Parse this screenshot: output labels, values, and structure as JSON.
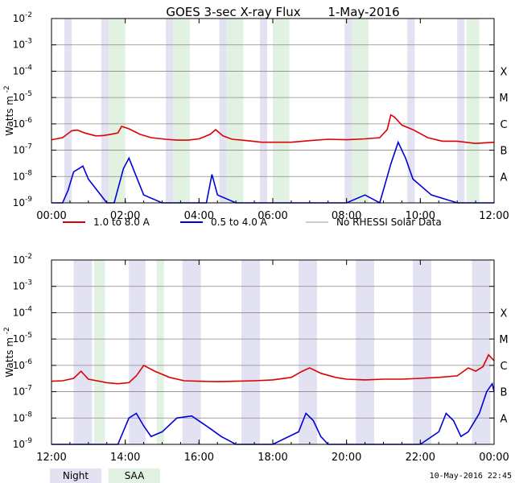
{
  "title": "GOES 3-sec X-ray Flux",
  "date": "1-May-2016",
  "timestamp": "10-May-2016 22:45",
  "colors": {
    "low": "#dd0000",
    "high": "#0000dd",
    "norhessi": "#999999",
    "night": "#e2e2f2",
    "saa": "#e2f2e2",
    "grid": "#888888"
  },
  "legend": [
    {
      "label": "1.0 to 8.0 A",
      "color": "#dd0000"
    },
    {
      "label": "0.5 to 4.0 A",
      "color": "#0000dd"
    },
    {
      "label": "No RHESSI Solar Data",
      "color": "#999999"
    }
  ],
  "key": {
    "night": "Night",
    "saa": "SAA"
  },
  "chart_data": [
    {
      "type": "line",
      "ylabel": "Watts m",
      "ylabel_sup": "-2",
      "ylog": true,
      "ylim": [
        1e-09,
        0.01
      ],
      "xlim_hours": [
        0,
        12
      ],
      "xticks": [
        "00:00",
        "02:00",
        "04:00",
        "06:00",
        "08:00",
        "10:00",
        "12:00"
      ],
      "yticks": [
        "10-9",
        "10-8",
        "10-7",
        "10-6",
        "10-5",
        "10-4",
        "10-3",
        "10-2"
      ],
      "class_labels": [
        "A",
        "B",
        "C",
        "M",
        "X"
      ],
      "night": [
        [
          0.35,
          0.55
        ],
        [
          1.35,
          1.55
        ],
        [
          3.1,
          3.3
        ],
        [
          4.55,
          4.75
        ],
        [
          5.65,
          5.85
        ],
        [
          7.95,
          8.15
        ],
        [
          9.65,
          9.85
        ],
        [
          11.0,
          11.2
        ]
      ],
      "saa": [
        [
          1.55,
          2.0
        ],
        [
          3.3,
          3.75
        ],
        [
          4.75,
          5.2
        ],
        [
          6.0,
          6.45
        ],
        [
          8.15,
          8.6
        ],
        [
          11.25,
          11.6
        ]
      ],
      "series": [
        {
          "name": "1.0 to 8.0 A",
          "x": [
            0.0,
            0.3,
            0.55,
            0.7,
            0.9,
            1.2,
            1.4,
            1.6,
            1.8,
            1.9,
            2.1,
            2.4,
            2.7,
            3.1,
            3.4,
            3.7,
            4.0,
            4.3,
            4.45,
            4.65,
            4.9,
            5.3,
            5.7,
            6.0,
            6.5,
            7.0,
            7.5,
            8.0,
            8.5,
            8.9,
            9.1,
            9.2,
            9.3,
            9.5,
            9.8,
            10.2,
            10.6,
            11.0,
            11.5,
            12.0
          ],
          "y": [
            2.5e-07,
            3e-07,
            5.5e-07,
            5.8e-07,
            4.5e-07,
            3.5e-07,
            3.6e-07,
            4e-07,
            4.5e-07,
            8e-07,
            6.5e-07,
            4e-07,
            3e-07,
            2.6e-07,
            2.4e-07,
            2.4e-07,
            2.7e-07,
            4e-07,
            6e-07,
            3.5e-07,
            2.6e-07,
            2.3e-07,
            2e-07,
            2e-07,
            2e-07,
            2.3e-07,
            2.6e-07,
            2.5e-07,
            2.7e-07,
            3e-07,
            6e-07,
            2.2e-06,
            1.8e-06,
            9e-07,
            6e-07,
            3e-07,
            2.2e-07,
            2.2e-07,
            1.8e-07,
            2e-07
          ]
        },
        {
          "name": "0.5 to 4.0 A",
          "x": [
            0.0,
            0.3,
            0.45,
            0.6,
            0.85,
            1.0,
            1.5,
            1.7,
            1.95,
            2.1,
            2.3,
            2.5,
            3.0,
            4.0,
            4.2,
            4.35,
            4.5,
            5.0,
            8.0,
            8.5,
            8.9,
            9.2,
            9.4,
            9.6,
            9.8,
            10.3,
            11.0,
            12.0
          ],
          "y": [
            1e-09,
            1e-09,
            3e-09,
            1.5e-08,
            2.5e-08,
            8e-09,
            1e-09,
            1e-09,
            2e-08,
            5e-08,
            1e-08,
            2e-09,
            1e-09,
            1e-09,
            1e-09,
            1.2e-08,
            2e-09,
            1e-09,
            1e-09,
            2e-09,
            1e-09,
            3e-08,
            2e-07,
            5e-08,
            8e-09,
            2e-09,
            1e-09,
            1e-09
          ]
        }
      ]
    },
    {
      "type": "line",
      "ylabel": "Watts m",
      "ylabel_sup": "-2",
      "ylog": true,
      "ylim": [
        1e-09,
        0.01
      ],
      "xlim_hours": [
        12,
        24
      ],
      "xticks": [
        "12:00",
        "14:00",
        "16:00",
        "18:00",
        "20:00",
        "22:00",
        "00:00"
      ],
      "yticks": [
        "10-9",
        "10-8",
        "10-7",
        "10-6",
        "10-5",
        "10-4",
        "10-3",
        "10-2"
      ],
      "class_labels": [
        "A",
        "B",
        "C",
        "M",
        "X"
      ],
      "night": [
        [
          12.6,
          13.1
        ],
        [
          14.1,
          14.55
        ],
        [
          15.55,
          16.05
        ],
        [
          17.15,
          17.65
        ],
        [
          18.7,
          19.2
        ],
        [
          20.25,
          20.75
        ],
        [
          21.8,
          22.3
        ],
        [
          23.4,
          23.9
        ]
      ],
      "saa": [
        [
          13.15,
          13.45
        ],
        [
          14.85,
          15.05
        ]
      ],
      "series": [
        {
          "name": "1.0 to 8.0 A",
          "x": [
            12.0,
            12.3,
            12.6,
            12.8,
            13.0,
            13.5,
            13.8,
            14.1,
            14.3,
            14.5,
            14.8,
            15.2,
            15.6,
            16.0,
            16.5,
            17.0,
            17.5,
            18.0,
            18.5,
            18.8,
            19.0,
            19.3,
            19.7,
            20.0,
            20.5,
            21.0,
            21.5,
            22.0,
            22.5,
            23.0,
            23.3,
            23.5,
            23.7,
            23.85,
            24.0
          ],
          "y": [
            2.5e-07,
            2.6e-07,
            3.2e-07,
            6e-07,
            3e-07,
            2.2e-07,
            2e-07,
            2.2e-07,
            4e-07,
            1e-06,
            6e-07,
            3.5e-07,
            2.6e-07,
            2.5e-07,
            2.4e-07,
            2.5e-07,
            2.6e-07,
            2.8e-07,
            3.5e-07,
            6e-07,
            8e-07,
            5e-07,
            3.5e-07,
            3e-07,
            2.8e-07,
            3e-07,
            3e-07,
            3.2e-07,
            3.5e-07,
            4e-07,
            8e-07,
            6e-07,
            9e-07,
            2.5e-06,
            1.5e-06
          ]
        },
        {
          "name": "0.5 to 4.0 A",
          "x": [
            12.0,
            13.8,
            14.1,
            14.3,
            14.5,
            14.7,
            15.0,
            15.4,
            15.8,
            16.3,
            16.6,
            17.0,
            18.0,
            18.7,
            18.9,
            19.1,
            19.3,
            19.5,
            20.0,
            22.0,
            22.5,
            22.7,
            22.9,
            23.1,
            23.3,
            23.6,
            23.8,
            23.95,
            24.0
          ],
          "y": [
            1e-09,
            1e-09,
            1e-08,
            1.5e-08,
            5e-09,
            2e-09,
            3e-09,
            1e-08,
            1.2e-08,
            4e-09,
            2e-09,
            1e-09,
            1e-09,
            3e-09,
            1.5e-08,
            8e-09,
            2e-09,
            1e-09,
            1e-09,
            1e-09,
            3e-09,
            1.5e-08,
            8e-09,
            2e-09,
            3e-09,
            1.5e-08,
            1e-07,
            2e-07,
            1e-07
          ]
        }
      ]
    }
  ]
}
